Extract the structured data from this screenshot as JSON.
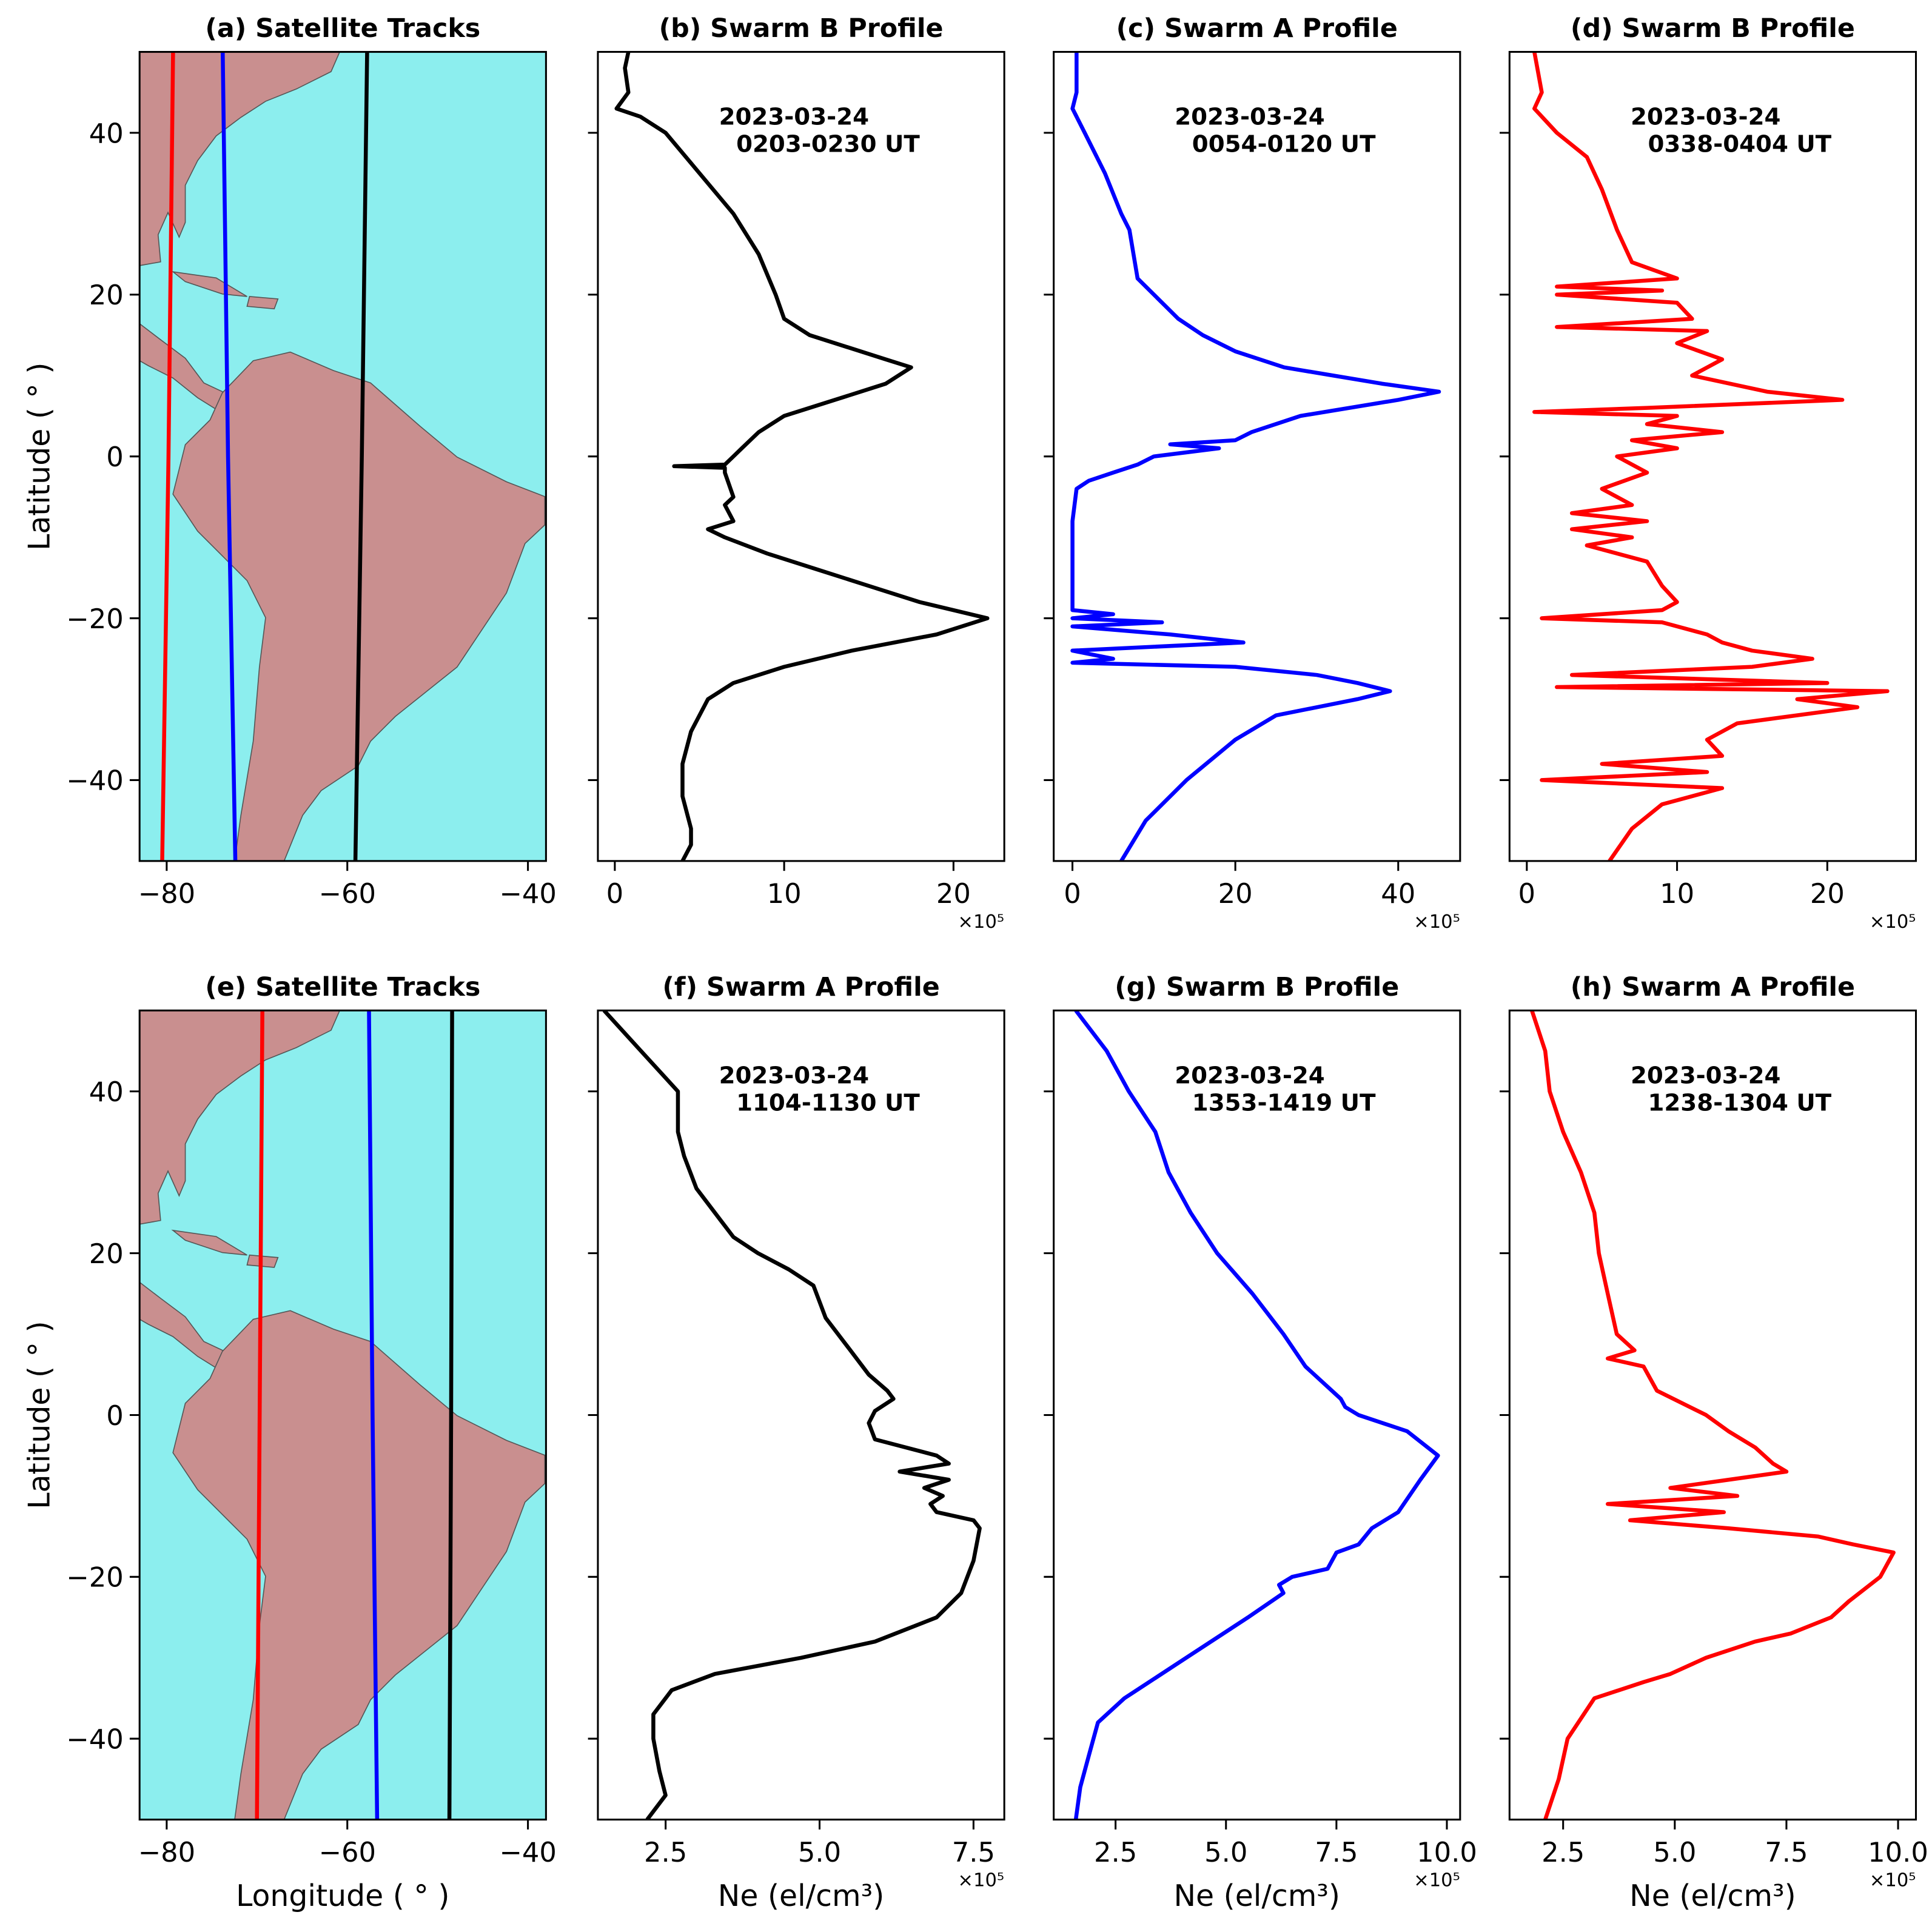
{
  "chart_data": [
    {
      "type": "map",
      "title": "(a) Satellite Tracks",
      "ylabel": "Latitude ( ° )",
      "ocean_color": "#8ceeee",
      "land_color": "#c98f8f",
      "xlim": [
        -83,
        -38
      ],
      "ylim": [
        -50,
        50
      ],
      "xticks": [
        {
          "value": -80,
          "label": "−80"
        },
        {
          "value": -60,
          "label": "−60"
        },
        {
          "value": -40,
          "label": "−40"
        }
      ],
      "yticks": [
        {
          "value": -40,
          "label": "−40"
        },
        {
          "value": -20,
          "label": "−20"
        },
        0,
        20,
        40
      ],
      "series": [
        {
          "color": "#ff0000",
          "lat": [
            50,
            0,
            -50
          ],
          "lon": [
            -79.3,
            -79.8,
            -80.5
          ]
        },
        {
          "color": "#0000ff",
          "lat": [
            50,
            0,
            -50
          ],
          "lon": [
            -73.8,
            -73.2,
            -72.4
          ]
        },
        {
          "color": "#000000",
          "lat": [
            50,
            0,
            -50
          ],
          "lon": [
            -57.8,
            -58.4,
            -59.1
          ]
        }
      ]
    },
    {
      "type": "line",
      "title": "(b) Swarm B Profile",
      "annotation": [
        "2023-03-24",
        "0203-0230 UT"
      ],
      "x_offset": "×10⁵",
      "xlim": [
        -1,
        23
      ],
      "ylim": [
        -50,
        50
      ],
      "xticks": [
        0,
        10,
        20
      ],
      "yticks": [
        -40,
        -20,
        0,
        20,
        40
      ],
      "series": [
        {
          "color": "#000000",
          "lat": [
            50,
            48,
            45,
            43,
            42,
            40,
            35,
            30,
            25,
            20,
            17,
            15,
            12,
            11,
            9,
            7,
            5,
            3,
            1,
            0,
            -1,
            -1.2,
            -1.4,
            -2,
            -5,
            -6,
            -8,
            -9,
            -10,
            -12,
            -14,
            -16,
            -18,
            -20,
            -22,
            -24,
            -26,
            -28,
            -30,
            -34,
            -38,
            -42,
            -46,
            -48,
            -50
          ],
          "values": [
            0.8,
            0.6,
            0.8,
            0.1,
            1.5,
            3,
            5,
            7,
            8.5,
            9.5,
            10,
            11.5,
            16,
            17.5,
            16,
            13,
            10,
            8.5,
            7.5,
            7,
            6.5,
            3.5,
            6.5,
            6.5,
            7,
            6.5,
            7,
            5.5,
            6.5,
            9,
            12,
            15,
            18,
            22,
            19,
            14,
            10,
            7,
            5.5,
            4.5,
            4,
            4,
            4.5,
            4.5,
            4
          ]
        }
      ]
    },
    {
      "type": "line",
      "title": "(c) Swarm A Profile",
      "annotation": [
        "2023-03-24",
        "0054-0120 UT"
      ],
      "x_offset": "×10⁵",
      "xlim": [
        -2.3,
        47.6
      ],
      "ylim": [
        -50,
        50
      ],
      "xticks": [
        0,
        20,
        40
      ],
      "yticks": [
        -40,
        -20,
        0,
        20,
        40
      ],
      "series": [
        {
          "color": "#0000ff",
          "lat": [
            50,
            45,
            43,
            40,
            35,
            30,
            28,
            25,
            22,
            20,
            17,
            15,
            13,
            11,
            10,
            9,
            8,
            7,
            5,
            3,
            2,
            1.5,
            1,
            0,
            -1,
            -2,
            -3,
            -4,
            -8,
            -15,
            -19,
            -19.5,
            -20,
            -20.5,
            -21,
            -22,
            -23,
            -24,
            -25,
            -25.5,
            -26,
            -27,
            -28,
            -29,
            -30,
            -32,
            -35,
            -40,
            -45,
            -50
          ],
          "values": [
            0.5,
            0.5,
            0,
            1.5,
            4,
            6,
            7,
            7.5,
            8,
            10,
            13,
            16,
            20,
            26,
            32,
            38,
            45,
            40,
            28,
            22,
            20,
            12,
            18,
            10,
            8,
            5,
            2,
            0.5,
            0,
            0,
            0,
            5,
            0,
            11,
            0,
            12,
            21,
            0,
            5,
            0,
            20,
            30,
            35,
            39,
            35,
            25,
            20,
            14,
            9,
            6
          ]
        }
      ]
    },
    {
      "type": "line",
      "title": "(d) Swarm B Profile",
      "annotation": [
        "2023-03-24",
        "0338-0404 UT"
      ],
      "x_offset": "×10⁵",
      "xlim": [
        -1.15,
        25.9
      ],
      "ylim": [
        -50,
        50
      ],
      "xticks": [
        0,
        10,
        20
      ],
      "yticks": [
        -40,
        -20,
        0,
        20,
        40
      ],
      "series": [
        {
          "color": "#ff0000",
          "lat": [
            50,
            45,
            43,
            40,
            37,
            33,
            28,
            24,
            22,
            21,
            20.5,
            20,
            19,
            17,
            16,
            15.5,
            14,
            12,
            10,
            8,
            7,
            6,
            5.5,
            5,
            4,
            3,
            2,
            1,
            0,
            -2,
            -4,
            -6,
            -7,
            -8,
            -9,
            -10,
            -11,
            -13,
            -16,
            -18,
            -19,
            -20,
            -20.5,
            -22,
            -23,
            -24,
            -25,
            -26,
            -27,
            -28,
            -28.5,
            -29,
            -30,
            -31,
            -33,
            -35,
            -37,
            -38,
            -39,
            -40,
            -41,
            -43,
            -46,
            -50
          ],
          "values": [
            0.5,
            1,
            0.5,
            2,
            4,
            5,
            6,
            7,
            10,
            2,
            9,
            2,
            10,
            11,
            2,
            12,
            10,
            13,
            11,
            16,
            21,
            8,
            0.5,
            10,
            8,
            13,
            7,
            10,
            6,
            8,
            5,
            7,
            3,
            8,
            3,
            7,
            4,
            8,
            9,
            10,
            9,
            1,
            9,
            12,
            13,
            15,
            19,
            15,
            3,
            20,
            2,
            24,
            18,
            22,
            14,
            12,
            13,
            5,
            12,
            1,
            13,
            9,
            7,
            5.5
          ]
        }
      ]
    },
    {
      "type": "map",
      "title": "(e) Satellite Tracks",
      "ylabel": "Latitude ( ° )",
      "xlabel": "Longitude ( ° )",
      "ocean_color": "#8ceeee",
      "land_color": "#c98f8f",
      "xlim": [
        -83,
        -38
      ],
      "ylim": [
        -50,
        50
      ],
      "xticks": [
        {
          "value": -80,
          "label": "−80"
        },
        {
          "value": -60,
          "label": "−60"
        },
        {
          "value": -40,
          "label": "−40"
        }
      ],
      "yticks": [
        {
          "value": -40,
          "label": "−40"
        },
        {
          "value": -20,
          "label": "−20"
        },
        0,
        20,
        40
      ],
      "series": [
        {
          "color": "#ff0000",
          "lat": [
            50,
            0,
            -50
          ],
          "lon": [
            -69.4,
            -69.7,
            -70.0
          ]
        },
        {
          "color": "#0000ff",
          "lat": [
            50,
            0,
            -50
          ],
          "lon": [
            -57.6,
            -57.2,
            -56.7
          ]
        },
        {
          "color": "#000000",
          "lat": [
            50,
            0,
            -50
          ],
          "lon": [
            -48.4,
            -48.5,
            -48.7
          ]
        }
      ]
    },
    {
      "type": "line",
      "title": "(f) Swarm A Profile",
      "annotation": [
        "2023-03-24",
        "1104-1130 UT"
      ],
      "x_offset": "×10⁵",
      "xlabel": "Ne (el/cm³)",
      "xlim": [
        1.4,
        8.0
      ],
      "ylim": [
        -50,
        50
      ],
      "xticks": [
        2.5,
        {
          "value": 5,
          "label": "5.0"
        },
        7.5
      ],
      "yticks": [
        -40,
        -20,
        0,
        20,
        40
      ],
      "series": [
        {
          "color": "#000000",
          "lat": [
            50,
            45,
            40,
            38,
            35,
            32,
            28,
            24,
            22,
            20,
            18,
            16,
            12,
            8,
            5,
            3,
            2,
            0.5,
            -1,
            -3,
            -5,
            -6,
            -7,
            -8,
            -9,
            -10,
            -11,
            -12,
            -13,
            -14,
            -18,
            -20,
            -22,
            -25,
            -28,
            -30,
            -32,
            -34,
            -37,
            -40,
            -44,
            -47,
            -50
          ],
          "values": [
            1.5,
            2.1,
            2.7,
            2.7,
            2.7,
            2.8,
            3.0,
            3.4,
            3.6,
            4.0,
            4.5,
            4.9,
            5.1,
            5.5,
            5.8,
            6.1,
            6.2,
            5.9,
            5.8,
            5.9,
            6.9,
            7.1,
            6.3,
            7.1,
            6.7,
            7.0,
            6.8,
            6.9,
            7.5,
            7.6,
            7.5,
            7.4,
            7.3,
            6.9,
            5.9,
            4.7,
            3.3,
            2.6,
            2.3,
            2.3,
            2.4,
            2.5,
            2.2
          ]
        }
      ]
    },
    {
      "type": "line",
      "title": "(g) Swarm B Profile",
      "annotation": [
        "2023-03-24",
        "1353-1419 UT"
      ],
      "x_offset": "×10⁵",
      "xlabel": "Ne (el/cm³)",
      "xlim": [
        1.1,
        10.3
      ],
      "ylim": [
        -50,
        50
      ],
      "xticks": [
        2.5,
        {
          "value": 5,
          "label": "5.0"
        },
        7.5,
        {
          "value": 10,
          "label": "10.0"
        }
      ],
      "yticks": [
        -40,
        -20,
        0,
        20,
        40
      ],
      "series": [
        {
          "color": "#0000ff",
          "lat": [
            50,
            45,
            40,
            35,
            30,
            25,
            20,
            15,
            10,
            6,
            4,
            2,
            1,
            0,
            -2,
            -5,
            -8,
            -12,
            -14,
            -16,
            -17,
            -19,
            -20,
            -21,
            -22,
            -25,
            -30,
            -35,
            -38,
            -42,
            -46,
            -50
          ],
          "values": [
            1.6,
            2.3,
            2.8,
            3.4,
            3.7,
            4.2,
            4.8,
            5.6,
            6.3,
            6.8,
            7.2,
            7.6,
            7.7,
            8.0,
            9.1,
            9.8,
            9.4,
            8.9,
            8.3,
            8.0,
            7.5,
            7.3,
            6.5,
            6.2,
            6.3,
            5.5,
            4.1,
            2.7,
            2.1,
            1.9,
            1.7,
            1.6
          ]
        }
      ]
    },
    {
      "type": "line",
      "title": "(h) Swarm A Profile",
      "annotation": [
        "2023-03-24",
        "1238-1304 UT"
      ],
      "x_offset": "×10⁵",
      "xlabel": "Ne (el/cm³)",
      "xlim": [
        1.3,
        10.4
      ],
      "ylim": [
        -50,
        50
      ],
      "xticks": [
        2.5,
        {
          "value": 5,
          "label": "5.0"
        },
        7.5,
        {
          "value": 10,
          "label": "10.0"
        }
      ],
      "yticks": [
        -40,
        -20,
        0,
        20,
        40
      ],
      "series": [
        {
          "color": "#ff0000",
          "lat": [
            50,
            45,
            40,
            35,
            30,
            25,
            20,
            15,
            10,
            8,
            7,
            6,
            3,
            0,
            -2,
            -4,
            -6,
            -7,
            -8,
            -9,
            -10,
            -11,
            -12,
            -13,
            -14,
            -15,
            -16,
            -17,
            -20,
            -23,
            -25,
            -27,
            -28,
            -30,
            -32,
            -33,
            -35,
            -40,
            -45,
            -50
          ],
          "values": [
            1.8,
            2.1,
            2.2,
            2.5,
            2.9,
            3.2,
            3.3,
            3.5,
            3.7,
            4.1,
            3.5,
            4.3,
            4.6,
            5.7,
            6.2,
            6.8,
            7.2,
            7.5,
            6.2,
            4.9,
            6.4,
            3.5,
            6.1,
            4.0,
            6.2,
            8.2,
            9.0,
            9.9,
            9.6,
            8.9,
            8.5,
            7.6,
            6.8,
            5.7,
            4.9,
            4.3,
            3.2,
            2.6,
            2.4,
            2.1
          ]
        }
      ]
    }
  ]
}
